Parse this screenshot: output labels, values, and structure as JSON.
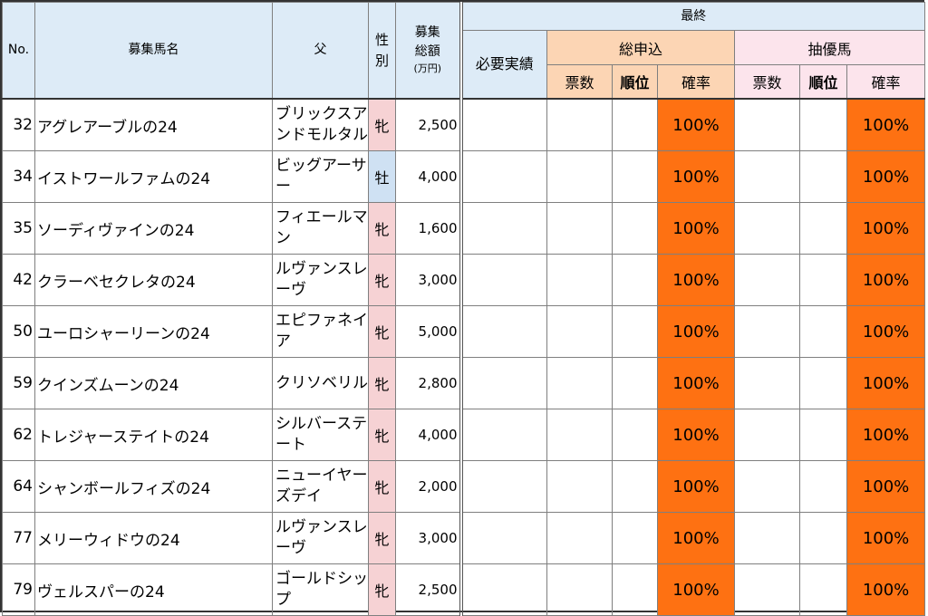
{
  "header": {
    "no": "No.",
    "name": "募集馬名",
    "sire": "父",
    "sex": "性別",
    "amount_line1": "募集",
    "amount_line2": "総額",
    "amount_unit": "(万円)",
    "final": "最終",
    "required": "必要実績",
    "total_apply": "総申込",
    "lottery_pref": "抽優馬",
    "votes": "票数",
    "rank": "順位",
    "probability": "確率"
  },
  "rows": [
    {
      "no": "32",
      "name": "アグレアーブルの24",
      "sire": "ブリックスアンドモルタル",
      "sex": "牝",
      "sex_type": "f",
      "amount": "2,500",
      "rate_total": "100%",
      "rate_pref": "100%"
    },
    {
      "no": "34",
      "name": "イストワールファムの24",
      "sire": "ビッグアーサー",
      "sex": "牡",
      "sex_type": "m",
      "amount": "4,000",
      "rate_total": "100%",
      "rate_pref": "100%"
    },
    {
      "no": "35",
      "name": "ソーディヴァインの24",
      "sire": "フィエールマン",
      "sex": "牝",
      "sex_type": "f",
      "amount": "1,600",
      "rate_total": "100%",
      "rate_pref": "100%"
    },
    {
      "no": "42",
      "name": "クラーベセクレタの24",
      "sire": "ルヴァンスレーヴ",
      "sex": "牝",
      "sex_type": "f",
      "amount": "3,000",
      "rate_total": "100%",
      "rate_pref": "100%"
    },
    {
      "no": "50",
      "name": "ユーロシャーリーンの24",
      "sire": "エピファネイア",
      "sex": "牝",
      "sex_type": "f",
      "amount": "5,000",
      "rate_total": "100%",
      "rate_pref": "100%"
    },
    {
      "no": "59",
      "name": "クインズムーンの24",
      "sire": "クリソベリル",
      "sex": "牝",
      "sex_type": "f",
      "amount": "2,800",
      "rate_total": "100%",
      "rate_pref": "100%"
    },
    {
      "no": "62",
      "name": "トレジャーステイトの24",
      "sire": "シルバーステート",
      "sex": "牝",
      "sex_type": "f",
      "amount": "4,000",
      "rate_total": "100%",
      "rate_pref": "100%"
    },
    {
      "no": "64",
      "name": "シャンボールフィズの24",
      "sire": "ニューイヤーズデイ",
      "sex": "牝",
      "sex_type": "f",
      "amount": "2,000",
      "rate_total": "100%",
      "rate_pref": "100%"
    },
    {
      "no": "77",
      "name": "メリーウィドウの24",
      "sire": "ルヴァンスレーヴ",
      "sex": "牝",
      "sex_type": "f",
      "amount": "3,000",
      "rate_total": "100%",
      "rate_pref": "100%"
    },
    {
      "no": "79",
      "name": "ヴェルスパーの24",
      "sire": "ゴールドシップ",
      "sex": "牝",
      "sex_type": "f",
      "amount": "2,500",
      "rate_total": "100%",
      "rate_pref": "100%"
    }
  ],
  "colors": {
    "probability_fill": "#fe7112",
    "female": "#f6d2d4",
    "male": "#cfe1f3",
    "header": "#ddebf7"
  }
}
